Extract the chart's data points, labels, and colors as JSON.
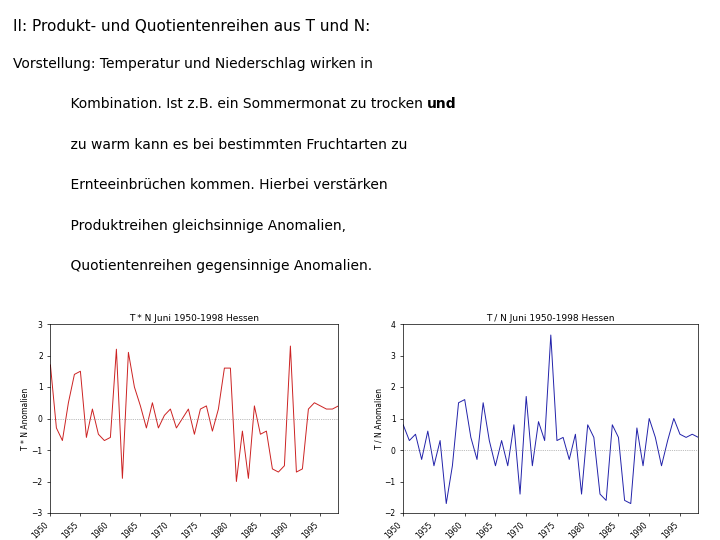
{
  "title_line1": "II: Produkt- und Quotientenreihen aus T und N:",
  "line1": "Vorstellung: Temperatur und Niederschlag wirken in",
  "line2_normal": "    Kombination. Ist z.B. ein Sommermonat zu trocken ",
  "line2_bold": "und",
  "line3": "    zu warm kann es bei bestimmten Fruchtarten zu",
  "line4": "    Ernteeinbrüchen kommen. Hierbei verstärken",
  "line5": "    Produktreihen gleichsinnige Anomalien,",
  "line6": "    Quotientenreihen gegensinnige Anomalien.",
  "plot1": {
    "title": "T * N Juni 1950-1998 Hessen",
    "ylabel": "T * N Anomalien",
    "color": "#cc2222",
    "xlim": [
      1950,
      1998
    ],
    "ylim": [
      -3,
      3
    ],
    "yticks": [
      -3,
      -2,
      -1,
      0,
      1,
      2,
      3
    ],
    "xticks": [
      1950,
      1955,
      1960,
      1965,
      1970,
      1975,
      1980,
      1985,
      1990,
      1995
    ]
  },
  "plot2": {
    "title": "T / N Juni 1950-1998 Hessen",
    "ylabel": "T / N Anomalien",
    "color": "#2222aa",
    "xlim": [
      1950,
      1998
    ],
    "ylim": [
      -2,
      4
    ],
    "yticks": [
      -2,
      -1,
      0,
      1,
      2,
      3,
      4
    ],
    "xticks": [
      1950,
      1955,
      1960,
      1965,
      1970,
      1975,
      1980,
      1985,
      1990,
      1995
    ]
  },
  "bg_color": "#ffffff",
  "font_size_title": 11,
  "font_size_text": 10,
  "font_size_plot_title": 6.5,
  "font_size_axis": 5.5
}
